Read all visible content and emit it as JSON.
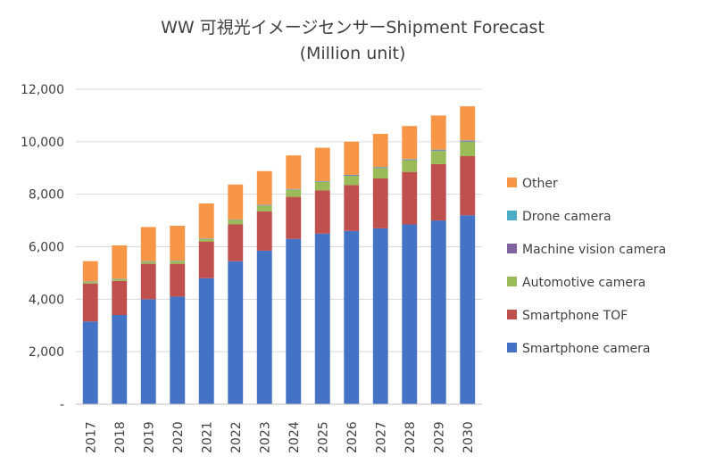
{
  "chart_data": {
    "type": "bar",
    "stacked": true,
    "title": "WW 可視光イメージセンサーShipment Forecast",
    "subtitle": "(Million unit)",
    "xlabel": "",
    "ylabel": "",
    "categories": [
      "2017",
      "2018",
      "2019",
      "2020",
      "2021",
      "2022",
      "2023",
      "2024",
      "2025",
      "2026",
      "2027",
      "2028",
      "2029",
      "2030"
    ],
    "ylim": [
      0,
      12000
    ],
    "yticks": [
      0,
      2000,
      4000,
      6000,
      8000,
      10000,
      12000
    ],
    "ytick_labels": [
      "-",
      "2,000",
      "4,000",
      "6,000",
      "8,000",
      "10,000",
      "12,000"
    ],
    "grid": true,
    "legend_position": "right",
    "series": [
      {
        "name": "Smartphone camera",
        "color": "#4472C4",
        "values": [
          3150,
          3400,
          4000,
          4100,
          4800,
          5450,
          5850,
          6300,
          6500,
          6600,
          6700,
          6850,
          7000,
          7200
        ]
      },
      {
        "name": "Smartphone TOF",
        "color": "#C0504D",
        "values": [
          1450,
          1300,
          1350,
          1250,
          1400,
          1400,
          1500,
          1600,
          1650,
          1750,
          1900,
          2000,
          2150,
          2250
        ]
      },
      {
        "name": "Automotive camera",
        "color": "#9BBB59",
        "values": [
          60,
          60,
          80,
          100,
          100,
          170,
          220,
          270,
          320,
          350,
          400,
          450,
          500,
          550
        ]
      },
      {
        "name": "Machine vision camera",
        "color": "#8064A2",
        "values": [
          10,
          10,
          10,
          10,
          10,
          10,
          15,
          15,
          15,
          20,
          20,
          20,
          25,
          25
        ]
      },
      {
        "name": "Drone camera",
        "color": "#4BACC6",
        "values": [
          10,
          10,
          10,
          10,
          10,
          10,
          15,
          15,
          15,
          20,
          20,
          20,
          25,
          25
        ]
      },
      {
        "name": "Other",
        "color": "#F79646",
        "values": [
          770,
          1270,
          1300,
          1330,
          1330,
          1330,
          1280,
          1280,
          1270,
          1260,
          1260,
          1260,
          1300,
          1300
        ]
      }
    ],
    "legend_order": [
      "Other",
      "Drone camera",
      "Machine vision camera",
      "Automotive camera",
      "Smartphone TOF",
      "Smartphone camera"
    ]
  }
}
